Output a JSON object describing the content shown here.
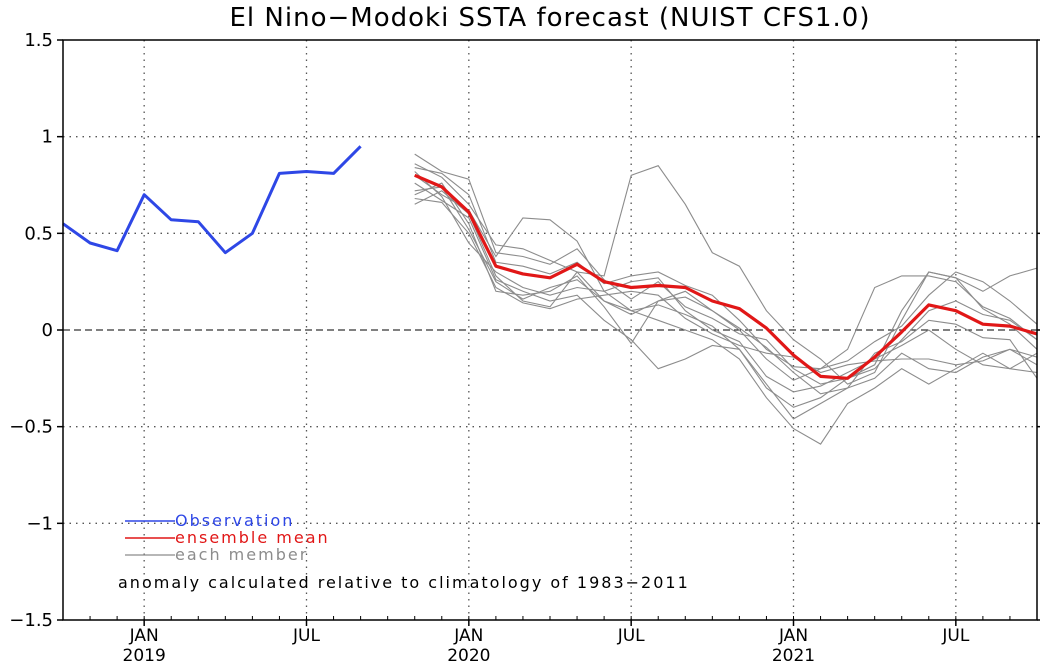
{
  "chart_data": {
    "type": "line",
    "title": "El Nino−Modoki SSTA forecast (NUIST CFS1.0)",
    "ylim": [
      -1.5,
      1.5
    ],
    "y_ticks": [
      -1.5,
      -1,
      -0.5,
      0,
      0.5,
      1,
      1.5
    ],
    "y_tick_labels": [
      "−1.5",
      "−1",
      "−0.5",
      "0",
      "0.5",
      "1",
      "1.5"
    ],
    "x_range": [
      "2018-10",
      "2021-10"
    ],
    "x_month_ticks": [
      {
        "month": "2019-01",
        "label": "JAN",
        "year": "2019"
      },
      {
        "month": "2019-07",
        "label": "JUL",
        "year": ""
      },
      {
        "month": "2020-01",
        "label": "JAN",
        "year": "2020"
      },
      {
        "month": "2020-07",
        "label": "JUL",
        "year": ""
      },
      {
        "month": "2021-01",
        "label": "JAN",
        "year": "2021"
      },
      {
        "month": "2021-07",
        "label": "JUL",
        "year": ""
      }
    ],
    "grid": "dotted",
    "zero_line": "dashed",
    "legend_position": "bottom-left",
    "annotation": "anomaly calculated relative to climatology of 1983−2011",
    "colors": {
      "observation": "#2e47e6",
      "mean": "#e11717",
      "member": "#8c8c8c"
    },
    "observation": {
      "name": "Observation",
      "months": [
        "2018-10",
        "2018-11",
        "2018-12",
        "2019-01",
        "2019-02",
        "2019-03",
        "2019-04",
        "2019-05",
        "2019-06",
        "2019-07",
        "2019-08",
        "2019-09",
        "2019-10"
      ],
      "values": [
        0.55,
        0.45,
        0.41,
        0.7,
        0.57,
        0.56,
        0.4,
        0.5,
        0.81,
        0.82,
        0.81,
        0.95,
        null
      ]
    },
    "forecast_months": [
      "2019-11",
      "2019-12",
      "2020-01",
      "2020-02",
      "2020-03",
      "2020-04",
      "2020-05",
      "2020-06",
      "2020-07",
      "2020-08",
      "2020-09",
      "2020-10",
      "2020-11",
      "2020-12",
      "2021-01",
      "2021-02",
      "2021-03",
      "2021-04",
      "2021-05",
      "2021-06",
      "2021-07",
      "2021-08",
      "2021-09",
      "2021-10"
    ],
    "ensemble_mean": {
      "name": "ensemble mean",
      "values": [
        0.8,
        0.74,
        0.61,
        0.33,
        0.29,
        0.27,
        0.34,
        0.25,
        0.22,
        0.23,
        0.22,
        0.15,
        0.11,
        0.01,
        -0.13,
        -0.24,
        -0.25,
        -0.14,
        -0.01,
        0.13,
        0.1,
        0.03,
        0.02,
        -0.02
      ]
    },
    "members": {
      "name": "each member",
      "series": [
        [
          0.91,
          0.82,
          0.78,
          0.4,
          0.38,
          0.34,
          0.42,
          0.26,
          0.16,
          0.25,
          0.12,
          0.06,
          -0.02,
          -0.05,
          -0.2,
          -0.28,
          -0.25,
          -0.18,
          0.1,
          0.3,
          0.27,
          0.11,
          0.03,
          -0.1
        ],
        [
          0.86,
          0.79,
          0.65,
          0.44,
          0.42,
          0.36,
          0.3,
          0.15,
          0.08,
          0.15,
          0.17,
          0.1,
          0.01,
          -0.09,
          -0.22,
          -0.33,
          -0.3,
          -0.12,
          -0.06,
          0.05,
          0.03,
          -0.04,
          -0.05,
          -0.25
        ],
        [
          0.7,
          0.76,
          0.55,
          0.2,
          0.18,
          0.2,
          0.28,
          0.12,
          -0.07,
          0.15,
          0.2,
          0.1,
          0.0,
          -0.15,
          -0.26,
          -0.2,
          -0.16,
          -0.06,
          0.02,
          0.18,
          0.3,
          0.25,
          0.15,
          0.03
        ],
        [
          0.65,
          0.72,
          0.6,
          0.28,
          0.15,
          0.12,
          0.3,
          0.28,
          0.8,
          0.85,
          0.65,
          0.4,
          0.33,
          0.1,
          -0.05,
          -0.15,
          -0.28,
          -0.22,
          0.05,
          0.3,
          0.27,
          0.2,
          0.28,
          0.32
        ],
        [
          0.82,
          0.69,
          0.45,
          0.3,
          0.22,
          0.18,
          0.22,
          0.2,
          0.25,
          0.27,
          0.1,
          0.0,
          -0.06,
          -0.24,
          -0.32,
          -0.29,
          -0.22,
          -0.15,
          -0.08,
          0.0,
          -0.1,
          -0.18,
          -0.2,
          -0.12
        ],
        [
          0.76,
          0.67,
          0.58,
          0.26,
          0.2,
          0.15,
          0.18,
          0.05,
          -0.05,
          -0.2,
          -0.15,
          -0.08,
          -0.1,
          -0.3,
          -0.4,
          -0.35,
          -0.25,
          -0.2,
          -0.05,
          0.1,
          0.15,
          0.08,
          0.05,
          -0.05
        ],
        [
          0.84,
          0.81,
          0.7,
          0.35,
          0.33,
          0.29,
          0.35,
          0.24,
          0.28,
          0.3,
          0.23,
          0.18,
          0.05,
          -0.1,
          -0.19,
          -0.2,
          -0.1,
          0.22,
          0.28,
          0.28,
          0.25,
          0.12,
          0.06,
          -0.05
        ],
        [
          0.72,
          0.74,
          0.52,
          0.25,
          0.16,
          0.22,
          0.26,
          0.15,
          0.1,
          0.13,
          0.08,
          0.02,
          -0.1,
          -0.28,
          -0.46,
          -0.38,
          -0.3,
          -0.25,
          -0.12,
          -0.2,
          -0.22,
          -0.14,
          -0.1,
          -0.18
        ],
        [
          0.8,
          0.7,
          0.62,
          0.38,
          0.58,
          0.57,
          0.46,
          0.2,
          0.1,
          0.05,
          0.0,
          -0.05,
          -0.15,
          -0.35,
          -0.51,
          -0.59,
          -0.38,
          -0.3,
          -0.2,
          -0.28,
          -0.2,
          -0.12,
          -0.2,
          -0.22
        ],
        [
          0.68,
          0.66,
          0.5,
          0.22,
          0.14,
          0.11,
          0.16,
          0.18,
          0.2,
          0.18,
          0.06,
          -0.02,
          -0.08,
          -0.12,
          -0.14,
          -0.22,
          -0.18,
          -0.16,
          -0.15,
          -0.15,
          -0.18,
          -0.16,
          -0.1,
          -0.14
        ]
      ]
    }
  }
}
